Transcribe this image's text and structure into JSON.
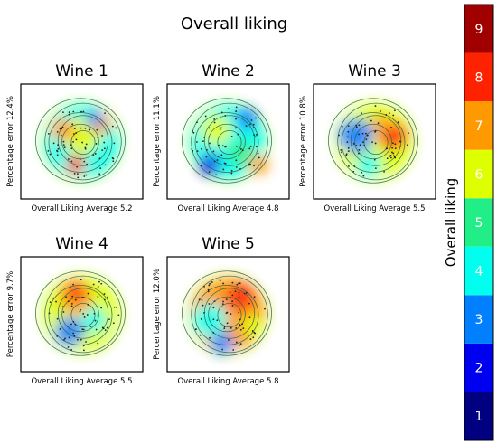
{
  "figure": {
    "title": "Overall  liking"
  },
  "colorbar": {
    "label": "Overall liking",
    "levels": [
      "1",
      "2",
      "3",
      "4",
      "5",
      "6",
      "7",
      "8",
      "9"
    ],
    "colors": [
      "#000080",
      "#0000f0",
      "#0080ff",
      "#00ffee",
      "#22ee88",
      "#ddff00",
      "#ff9900",
      "#ff2200",
      "#a00000"
    ]
  },
  "chart_data": [
    {
      "type": "heatmap",
      "title": "Wine 1",
      "xlabel": "Overall Liking Average 5.2",
      "ylabel": "Percentage error 12.4%",
      "average_liking": 5.2,
      "percentage_error": 12.4
    },
    {
      "type": "heatmap",
      "title": "Wine 2",
      "xlabel": "Overall Liking Average 4.8",
      "ylabel": "Percentage error 11.1%",
      "average_liking": 4.8,
      "percentage_error": 11.1
    },
    {
      "type": "heatmap",
      "title": "Wine 3",
      "xlabel": "Overall Liking Average 5.5",
      "ylabel": "Percentage error 10.8%",
      "average_liking": 5.5,
      "percentage_error": 10.8
    },
    {
      "type": "heatmap",
      "title": "Wine 4",
      "xlabel": "Overall Liking Average 5.5",
      "ylabel": "Percentage error 9.7%",
      "average_liking": 5.5,
      "percentage_error": 9.7
    },
    {
      "type": "heatmap",
      "title": "Wine 5",
      "xlabel": "Overall Liking Average 5.8",
      "ylabel": "Percentage error 12.0%",
      "average_liking": 5.8,
      "percentage_error": 12.0
    }
  ]
}
